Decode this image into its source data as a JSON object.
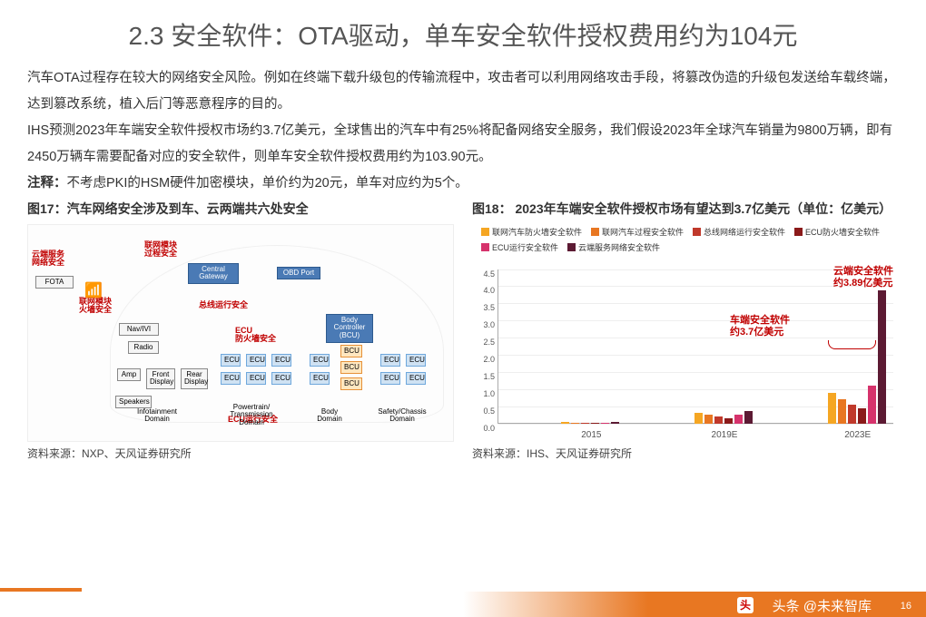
{
  "title": "2.3 安全软件：OTA驱动，单车安全软件授权费用约为104元",
  "paragraphs": [
    "汽车OTA过程存在较大的网络安全风险。例如在终端下载升级包的传输流程中，攻击者可以利用网络攻击手段，将篡改伪造的升级包发送给车载终端，达到篡改系统，植入后门等恶意程序的目的。",
    "IHS预测2023年车端安全软件授权市场约3.7亿美元，全球售出的汽车中有25%将配备网络安全服务，我们假设2023年全球汽车销量为9800万辆，即有2450万辆车需要配备对应的安全软件，则单车安全软件授权费用约为103.90元。"
  ],
  "note_label": "注释：",
  "note_text": "不考虑PKI的HSM硬件加密模块，单价约为20元，单车对应约为5个。",
  "fig17": {
    "title": "图17：汽车网络安全涉及到车、云两端共六处安全",
    "source": "资料来源：NXP、天风证券研究所",
    "red_labels": {
      "cloud": "云端服务\n网络安全",
      "module_fw": "联网模块\n火墙安全",
      "module": "联网模块\n过程安全",
      "bus": "总线运行安全",
      "ecu_fw": "ECU\n防火墙安全",
      "ecu_run": "ECU运行安全"
    },
    "nodes": {
      "fota": "FOTA",
      "gateway": "Central\nGateway",
      "obd": "OBD Port",
      "nav": "Nav/IVI",
      "radio": "Radio",
      "amp": "Amp",
      "front": "Front\nDisplay",
      "rear": "Rear\nDisplay",
      "speakers": "Speakers",
      "body": "Body\nController\n(BCU)",
      "ecu": "ECU",
      "bcu_small": "BCU",
      "d1": "Infotainment\nDomain",
      "d2": "Powertrain/\nTransmission\nDomain",
      "d3": "Body\nDomain",
      "d4": "Safety/Chassis\nDomain"
    }
  },
  "fig18": {
    "title": "图18： 2023年车端安全软件授权市场有望达到3.7亿美元（单位：亿美元）",
    "source": "资料来源：IHS、天风证券研究所",
    "legend": [
      {
        "label": "联网汽车防火墙安全软件",
        "color": "#f5a623"
      },
      {
        "label": "联网汽车过程安全软件",
        "color": "#e87722"
      },
      {
        "label": "总线网络运行安全软件",
        "color": "#c0392b"
      },
      {
        "label": "ECU防火墙安全软件",
        "color": "#8b1a1a"
      },
      {
        "label": "ECU运行安全软件",
        "color": "#d6336c"
      },
      {
        "label": "云端服务网络安全软件",
        "color": "#5c1a33"
      }
    ],
    "ymax": 4.5,
    "ytick_step": 0.5,
    "categories": [
      "2015",
      "2019E",
      "2023E"
    ],
    "series": [
      {
        "name": "联网汽车防火墙安全软件",
        "color": "#f5a623",
        "values": [
          0.05,
          0.3,
          0.9
        ]
      },
      {
        "name": "联网汽车过程安全软件",
        "color": "#e87722",
        "values": [
          0.02,
          0.25,
          0.7
        ]
      },
      {
        "name": "总线网络运行安全软件",
        "color": "#c0392b",
        "values": [
          0.02,
          0.2,
          0.55
        ]
      },
      {
        "name": "ECU防火墙安全软件",
        "color": "#8b1a1a",
        "values": [
          0.01,
          0.15,
          0.45
        ]
      },
      {
        "name": "ECU运行安全软件",
        "color": "#d6336c",
        "values": [
          0.02,
          0.25,
          1.1
        ]
      },
      {
        "name": "云端服务网络安全软件",
        "color": "#5c1a33",
        "values": [
          0.03,
          0.35,
          3.89
        ]
      }
    ],
    "annotations": {
      "car": "车端安全软件\n约3.7亿美元",
      "cloud": "云端安全软件\n约3.89亿美元"
    }
  },
  "watermark": "头条 @未来智库",
  "wm_icon": "头",
  "pagenum": "16"
}
